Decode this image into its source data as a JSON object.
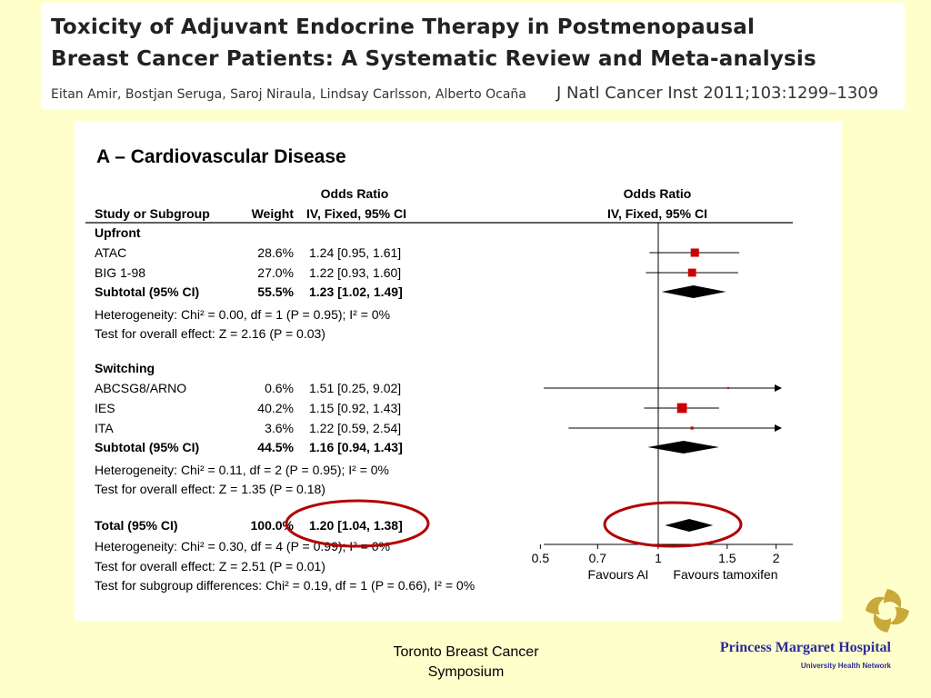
{
  "header": {
    "title_line1": "Toxicity of Adjuvant Endocrine Therapy in Postmenopausal",
    "title_line2": "Breast Cancer Patients: A Systematic Review and Meta-analysis",
    "authors": "Eitan Amir, Bostjan Seruga, Saroj Niraula, Lindsay Carlsson, Alberto Ocaña",
    "journal": "J Natl Cancer Inst 2011;103:1299–1309"
  },
  "footer": {
    "conference_line1": "Toronto Breast Cancer",
    "conference_line2": "Symposium",
    "hospital_name": "Princess Margaret Hospital",
    "hospital_network": "University Health Network"
  },
  "colors": {
    "square": "#cc0000",
    "diamond": "#000000",
    "highlight": "#b30000"
  },
  "chart_data": {
    "type": "forest",
    "title": "A – Cardiovascular Disease",
    "header_group1": "Odds Ratio",
    "header_group2": "Odds Ratio",
    "col_study": "Study or Subgroup",
    "col_weight": "Weight",
    "col_or": "IV, Fixed, 95% CI",
    "col_plot": "IV, Fixed, 95% CI",
    "x_scale": "log",
    "xlim": [
      0.5,
      2
    ],
    "x_ticks": [
      "0.5",
      "0.7",
      "1",
      "1.5",
      "2"
    ],
    "x_tick_values": [
      0.5,
      0.7,
      1,
      1.5,
      2
    ],
    "favours_left": "Favours AI",
    "favours_right": "Favours tamoxifen",
    "subgroups": [
      {
        "name": "Upfront",
        "studies": [
          {
            "name": "ATAC",
            "weight": "28.6%",
            "ci_text": "1.24 [0.95, 1.61]",
            "or": 1.24,
            "lo": 0.95,
            "hi": 1.61,
            "w": 28.6
          },
          {
            "name": "BIG 1-98",
            "weight": "27.0%",
            "ci_text": "1.22 [0.93, 1.60]",
            "or": 1.22,
            "lo": 0.93,
            "hi": 1.6,
            "w": 27.0
          }
        ],
        "subtotal": {
          "label": "Subtotal (95% CI)",
          "weight": "55.5%",
          "ci_text": "1.23 [1.02, 1.49]",
          "or": 1.23,
          "lo": 1.02,
          "hi": 1.49
        },
        "heterogeneity": "Heterogeneity: Chi² = 0.00, df = 1 (P = 0.95); I² = 0%",
        "overall_effect": "Test for overall effect: Z = 2.16 (P = 0.03)"
      },
      {
        "name": "Switching",
        "studies": [
          {
            "name": "ABCSG8/ARNO",
            "weight": "0.6%",
            "ci_text": "1.51 [0.25, 9.02]",
            "or": 1.51,
            "lo": 0.25,
            "hi": 9.02,
            "w": 0.6
          },
          {
            "name": "IES",
            "weight": "40.2%",
            "ci_text": "1.15 [0.92, 1.43]",
            "or": 1.15,
            "lo": 0.92,
            "hi": 1.43,
            "w": 40.2
          },
          {
            "name": "ITA",
            "weight": "3.6%",
            "ci_text": "1.22 [0.59, 2.54]",
            "or": 1.22,
            "lo": 0.59,
            "hi": 2.54,
            "w": 3.6
          }
        ],
        "subtotal": {
          "label": "Subtotal (95% CI)",
          "weight": "44.5%",
          "ci_text": "1.16 [0.94, 1.43]",
          "or": 1.16,
          "lo": 0.94,
          "hi": 1.43
        },
        "heterogeneity": "Heterogeneity: Chi² = 0.11, df = 2 (P = 0.95); I² = 0%",
        "overall_effect": "Test for overall effect: Z = 1.35 (P = 0.18)"
      }
    ],
    "total": {
      "label": "Total (95% CI)",
      "weight": "100.0%",
      "ci_text": "1.20 [1.04, 1.38]",
      "or": 1.2,
      "lo": 1.04,
      "hi": 1.38
    },
    "total_heterogeneity": "Heterogeneity: Chi² = 0.30, df = 4 (P = 0.99); I² = 0%",
    "total_overall_effect": "Test for overall effect: Z = 2.51 (P = 0.01)",
    "subgroup_differences": "Test for subgroup differences: Chi² = 0.19, df = 1 (P = 0.66), I² = 0%"
  }
}
